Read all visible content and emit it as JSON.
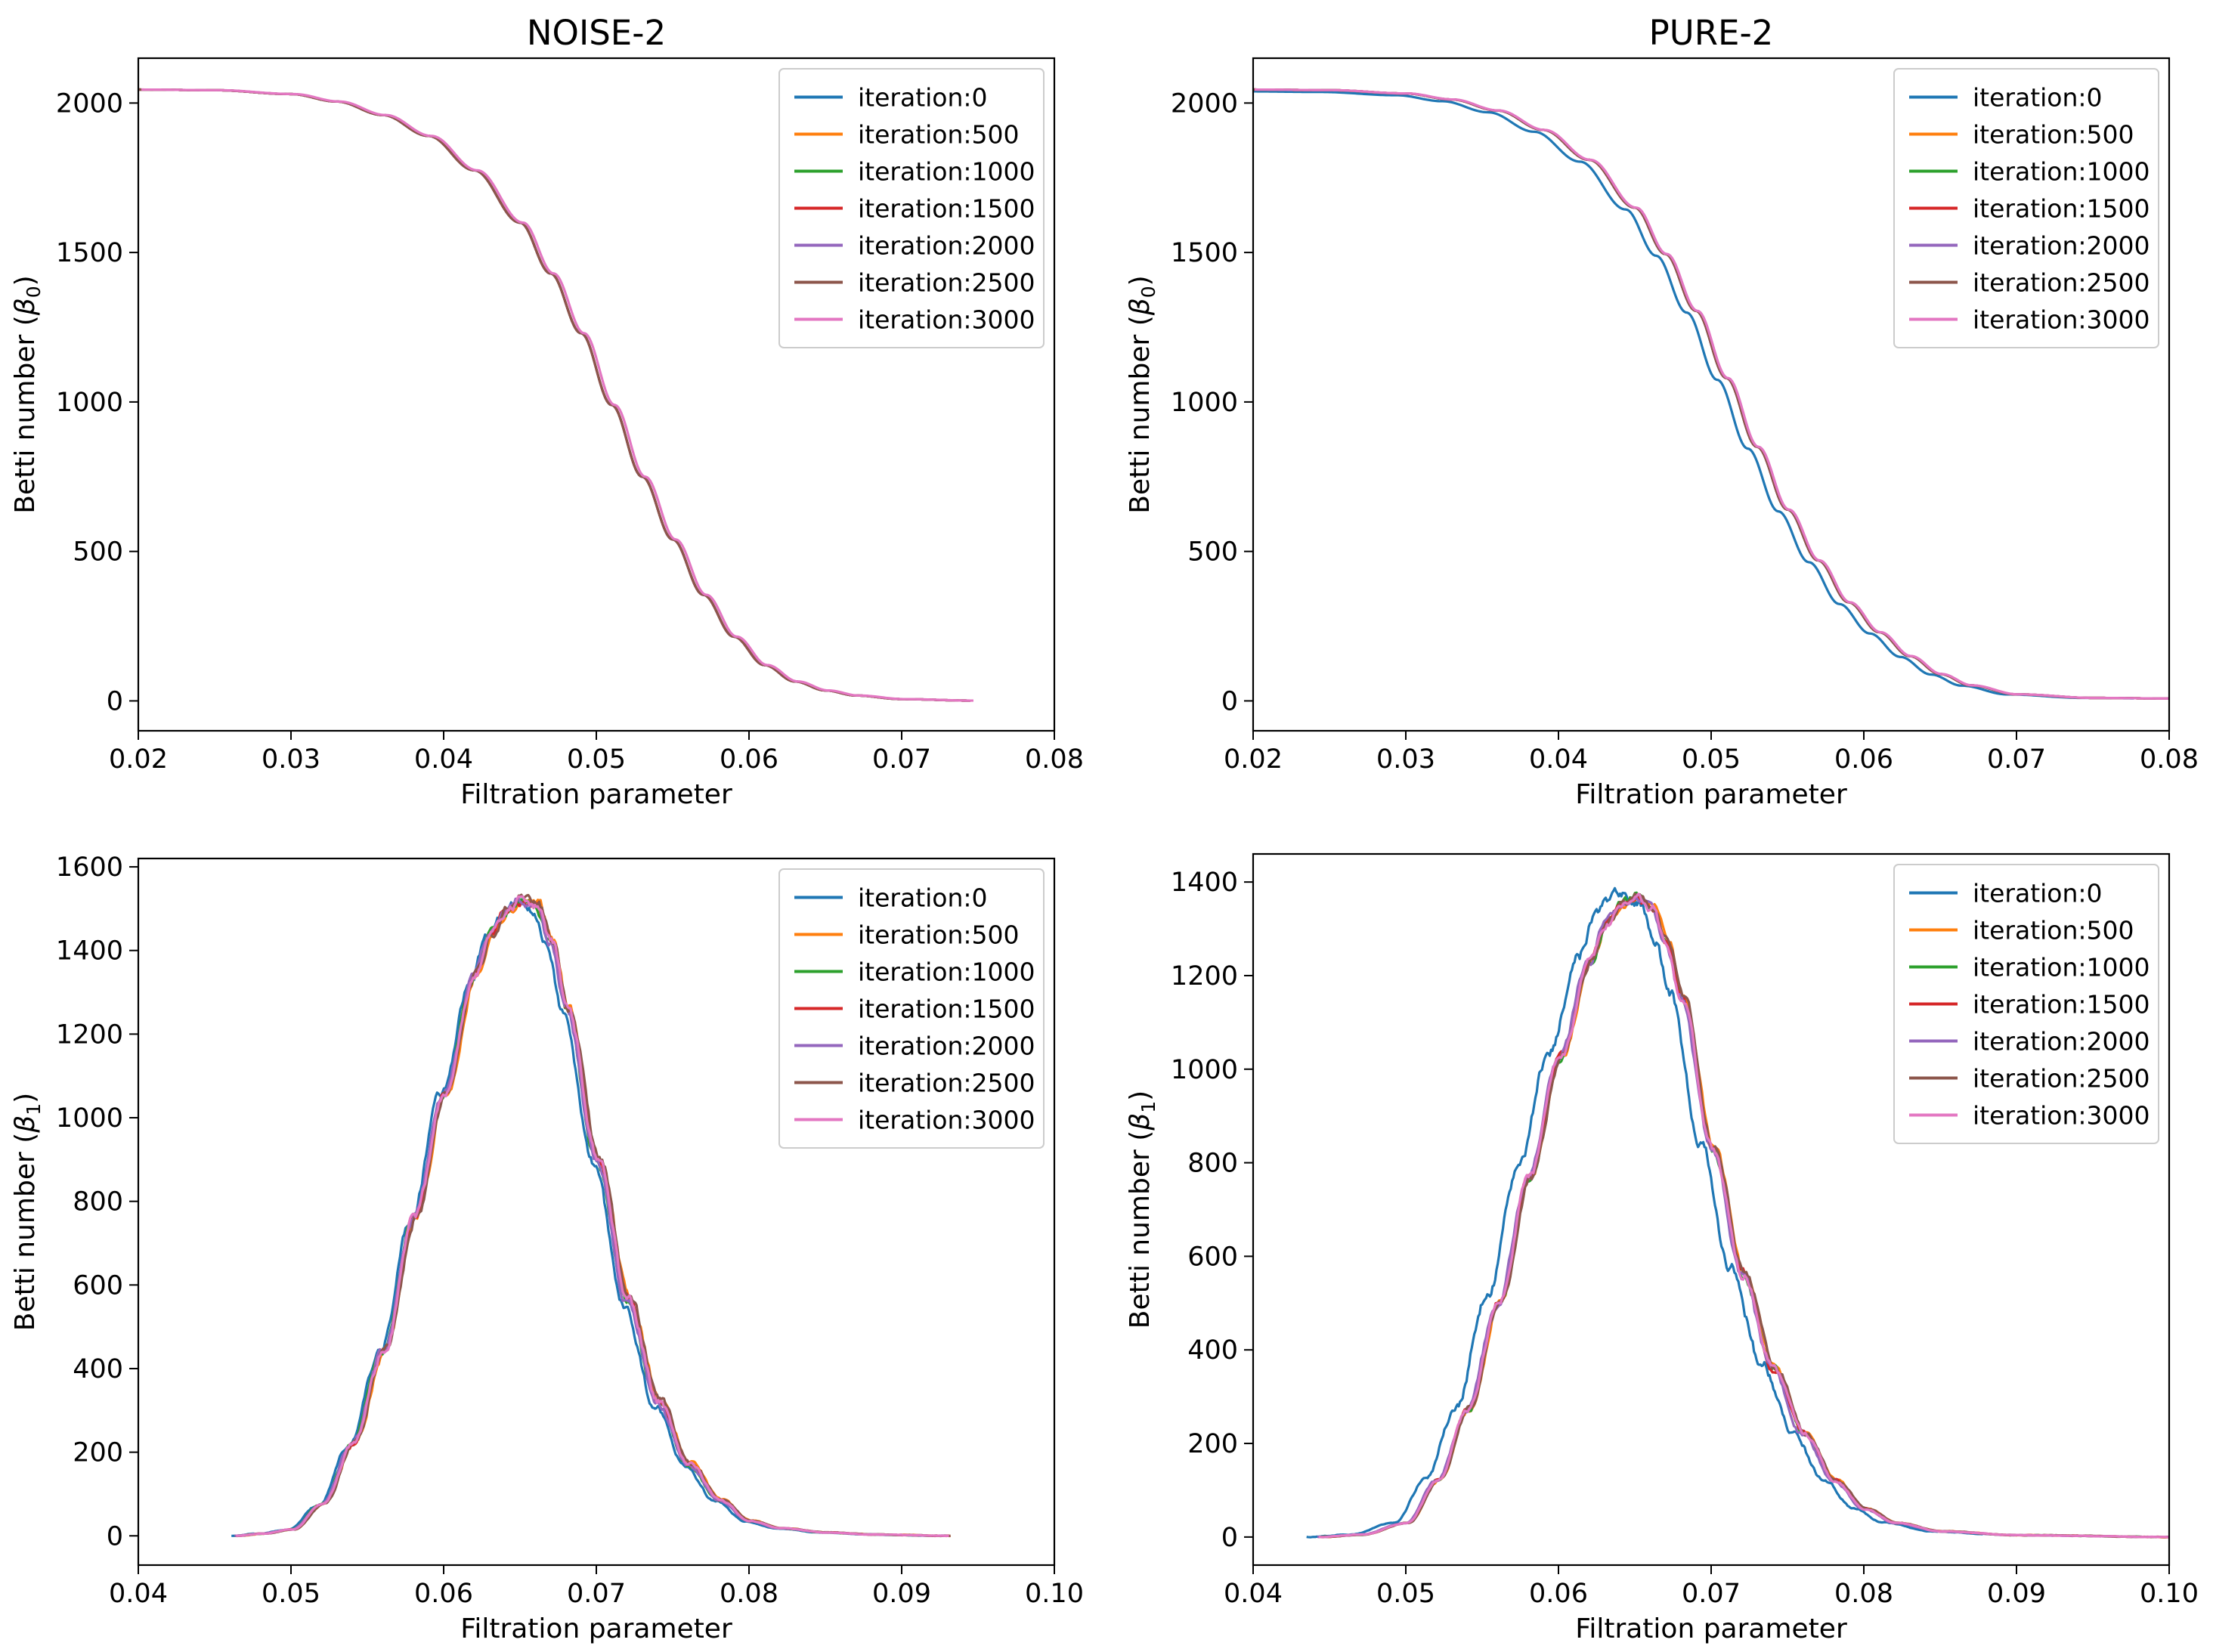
{
  "figure": {
    "domain": "Chart",
    "layout": "2x2 grid of line plots"
  },
  "colors": {
    "iteration:0": "#1f77b4",
    "iteration:500": "#ff7f0e",
    "iteration:1000": "#2ca02c",
    "iteration:1500": "#d62728",
    "iteration:2000": "#9467bd",
    "iteration:2500": "#8c564b",
    "iteration:3000": "#e377c2"
  },
  "chart_data": [
    {
      "id": "noise-b0",
      "type": "line",
      "title": "NOISE-2",
      "xlabel": "Filtration parameter",
      "ylabel_main": "Betti number (",
      "ylabel_sym": "β",
      "ylabel_sub": "0",
      "ylabel_end": ")",
      "xlim": [
        0.02,
        0.08
      ],
      "ylim": [
        -100,
        2150
      ],
      "xticks": [
        0.02,
        0.03,
        0.04,
        0.05,
        0.06,
        0.07,
        0.08
      ],
      "xtick_labels": [
        "0.02",
        "0.03",
        "0.04",
        "0.05",
        "0.06",
        "0.07",
        "0.08"
      ],
      "yticks": [
        0,
        500,
        1000,
        1500,
        2000
      ],
      "ytick_labels": [
        "0",
        "500",
        "1000",
        "1500",
        "2000"
      ],
      "legend_position": "top-right",
      "base": {
        "x": [
          0.02,
          0.025,
          0.03,
          0.033,
          0.036,
          0.039,
          0.042,
          0.045,
          0.047,
          0.049,
          0.051,
          0.053,
          0.055,
          0.057,
          0.059,
          0.061,
          0.063,
          0.065,
          0.067,
          0.07,
          0.0745
        ],
        "y": [
          2045,
          2043,
          2030,
          2005,
          1960,
          1890,
          1775,
          1600,
          1430,
          1230,
          990,
          750,
          540,
          355,
          215,
          120,
          65,
          35,
          18,
          6,
          1
        ]
      },
      "series": [
        {
          "name": "iteration:0",
          "dx": 0.0,
          "dy": 0.0,
          "noise": 0
        },
        {
          "name": "iteration:500",
          "dx": 0.0,
          "dy": 0.0,
          "noise": 0
        },
        {
          "name": "iteration:1000",
          "dx": 0.0,
          "dy": 0.0,
          "noise": 0
        },
        {
          "name": "iteration:1500",
          "dx": 0.0,
          "dy": 0.0,
          "noise": 0
        },
        {
          "name": "iteration:2000",
          "dx": 0.0,
          "dy": 0.0,
          "noise": 0
        },
        {
          "name": "iteration:2500",
          "dx": 0.0,
          "dy": 0.0,
          "noise": 0
        },
        {
          "name": "iteration:3000",
          "dx": 0.0002,
          "dy": 0.0,
          "noise": 0
        }
      ]
    },
    {
      "id": "pure-b0",
      "type": "line",
      "title": "PURE-2",
      "xlabel": "Filtration parameter",
      "ylabel_main": "Betti number (",
      "ylabel_sym": "β",
      "ylabel_sub": "0",
      "ylabel_end": ")",
      "xlim": [
        0.02,
        0.08
      ],
      "ylim": [
        -100,
        2150
      ],
      "xticks": [
        0.02,
        0.03,
        0.04,
        0.05,
        0.06,
        0.07,
        0.08
      ],
      "xtick_labels": [
        "0.02",
        "0.03",
        "0.04",
        "0.05",
        "0.06",
        "0.07",
        "0.08"
      ],
      "yticks": [
        0,
        500,
        1000,
        1500,
        2000
      ],
      "ytick_labels": [
        "0",
        "500",
        "1000",
        "1500",
        "2000"
      ],
      "legend_position": "top-right",
      "base": {
        "x": [
          0.02,
          0.025,
          0.03,
          0.033,
          0.036,
          0.039,
          0.042,
          0.045,
          0.047,
          0.049,
          0.051,
          0.053,
          0.055,
          0.057,
          0.059,
          0.061,
          0.063,
          0.065,
          0.067,
          0.07,
          0.075,
          0.08
        ],
        "y": [
          2045,
          2043,
          2032,
          2012,
          1975,
          1910,
          1810,
          1650,
          1495,
          1305,
          1080,
          850,
          640,
          470,
          330,
          230,
          150,
          90,
          52,
          22,
          10,
          8
        ]
      },
      "series": [
        {
          "name": "iteration:0",
          "dx": -0.0006,
          "dy": -6,
          "noise": 0,
          "xend": 0.0783
        },
        {
          "name": "iteration:500",
          "dx": 0.0,
          "dy": 0.0,
          "noise": 0
        },
        {
          "name": "iteration:1000",
          "dx": 0.0,
          "dy": 0.0,
          "noise": 0
        },
        {
          "name": "iteration:1500",
          "dx": 0.0,
          "dy": 0.0,
          "noise": 0
        },
        {
          "name": "iteration:2000",
          "dx": 0.0,
          "dy": 0.0,
          "noise": 0
        },
        {
          "name": "iteration:2500",
          "dx": 0.0,
          "dy": 0.0,
          "noise": 0
        },
        {
          "name": "iteration:3000",
          "dx": 0.0001,
          "dy": 0.0,
          "noise": 0
        }
      ]
    },
    {
      "id": "noise-b1",
      "type": "line",
      "title": "",
      "xlabel": "Filtration parameter",
      "ylabel_main": "Betti number (",
      "ylabel_sym": "β",
      "ylabel_sub": "1",
      "ylabel_end": ")",
      "xlim": [
        0.04,
        0.1
      ],
      "ylim": [
        -70,
        1620
      ],
      "xticks": [
        0.04,
        0.05,
        0.06,
        0.07,
        0.08,
        0.09,
        0.1
      ],
      "xtick_labels": [
        "0.04",
        "0.05",
        "0.06",
        "0.07",
        "0.08",
        "0.09",
        "0.10"
      ],
      "yticks": [
        0,
        200,
        400,
        600,
        800,
        1000,
        1200,
        1400,
        1600
      ],
      "ytick_labels": [
        "0",
        "200",
        "400",
        "600",
        "800",
        "1000",
        "1200",
        "1400",
        "1600"
      ],
      "legend_position": "top-right",
      "base": {
        "x": [
          0.0463,
          0.048,
          0.05,
          0.052,
          0.054,
          0.056,
          0.058,
          0.06,
          0.062,
          0.063,
          0.064,
          0.065,
          0.066,
          0.067,
          0.068,
          0.07,
          0.072,
          0.074,
          0.076,
          0.078,
          0.08,
          0.082,
          0.085,
          0.088,
          0.093
        ],
        "y": [
          0,
          5,
          15,
          75,
          220,
          440,
          760,
          1060,
          1340,
          1440,
          1490,
          1520,
          1505,
          1420,
          1260,
          900,
          560,
          320,
          170,
          85,
          35,
          18,
          8,
          3,
          0
        ]
      },
      "series": [
        {
          "name": "iteration:0",
          "dx": -0.0002,
          "dy": -8,
          "noise": 8
        },
        {
          "name": "iteration:500",
          "dx": 0.0002,
          "dy": 6,
          "noise": 8
        },
        {
          "name": "iteration:1000",
          "dx": 0.0,
          "dy": 0,
          "noise": 8
        },
        {
          "name": "iteration:1500",
          "dx": 0.0001,
          "dy": 3,
          "noise": 8
        },
        {
          "name": "iteration:2000",
          "dx": 0.0,
          "dy": 0,
          "noise": 8
        },
        {
          "name": "iteration:2500",
          "dx": 0.0002,
          "dy": 4,
          "noise": 8
        },
        {
          "name": "iteration:3000",
          "dx": 0.0001,
          "dy": 2,
          "noise": 8
        }
      ]
    },
    {
      "id": "pure-b1",
      "type": "line",
      "title": "",
      "xlabel": "Filtration parameter",
      "ylabel_main": "Betti number (",
      "ylabel_sym": "β",
      "ylabel_sub": "1",
      "ylabel_end": ")",
      "xlim": [
        0.04,
        0.1
      ],
      "ylim": [
        -60,
        1460
      ],
      "xticks": [
        0.04,
        0.05,
        0.06,
        0.07,
        0.08,
        0.09,
        0.1
      ],
      "xtick_labels": [
        "0.04",
        "0.05",
        "0.06",
        "0.07",
        "0.08",
        "0.09",
        "0.10"
      ],
      "yticks": [
        0,
        200,
        400,
        600,
        800,
        1000,
        1200,
        1400
      ],
      "ytick_labels": [
        "0",
        "200",
        "400",
        "600",
        "800",
        "1000",
        "1200",
        "1400"
      ],
      "legend_position": "top-right",
      "base": {
        "x": [
          0.0442,
          0.047,
          0.05,
          0.052,
          0.054,
          0.056,
          0.058,
          0.06,
          0.062,
          0.063,
          0.064,
          0.065,
          0.066,
          0.067,
          0.068,
          0.07,
          0.072,
          0.074,
          0.076,
          0.078,
          0.08,
          0.082,
          0.085,
          0.09,
          0.1
        ],
        "y": [
          0,
          5,
          30,
          120,
          270,
          500,
          770,
          1020,
          1230,
          1310,
          1350,
          1370,
          1345,
          1270,
          1150,
          830,
          560,
          360,
          220,
          120,
          60,
          30,
          12,
          4,
          0
        ]
      },
      "series": [
        {
          "name": "iteration:0",
          "dx": -0.0007,
          "dy": 10,
          "noise": 9,
          "xend": 0.0885
        },
        {
          "name": "iteration:500",
          "dx": 0.0002,
          "dy": 4,
          "noise": 7
        },
        {
          "name": "iteration:1000",
          "dx": 0.0001,
          "dy": 0,
          "noise": 7
        },
        {
          "name": "iteration:1500",
          "dx": 0.0001,
          "dy": 2,
          "noise": 7
        },
        {
          "name": "iteration:2000",
          "dx": 0.0,
          "dy": 0,
          "noise": 7
        },
        {
          "name": "iteration:2500",
          "dx": 0.0002,
          "dy": 3,
          "noise": 7
        },
        {
          "name": "iteration:3000",
          "dx": 0.0001,
          "dy": 0,
          "noise": 7
        }
      ]
    }
  ]
}
